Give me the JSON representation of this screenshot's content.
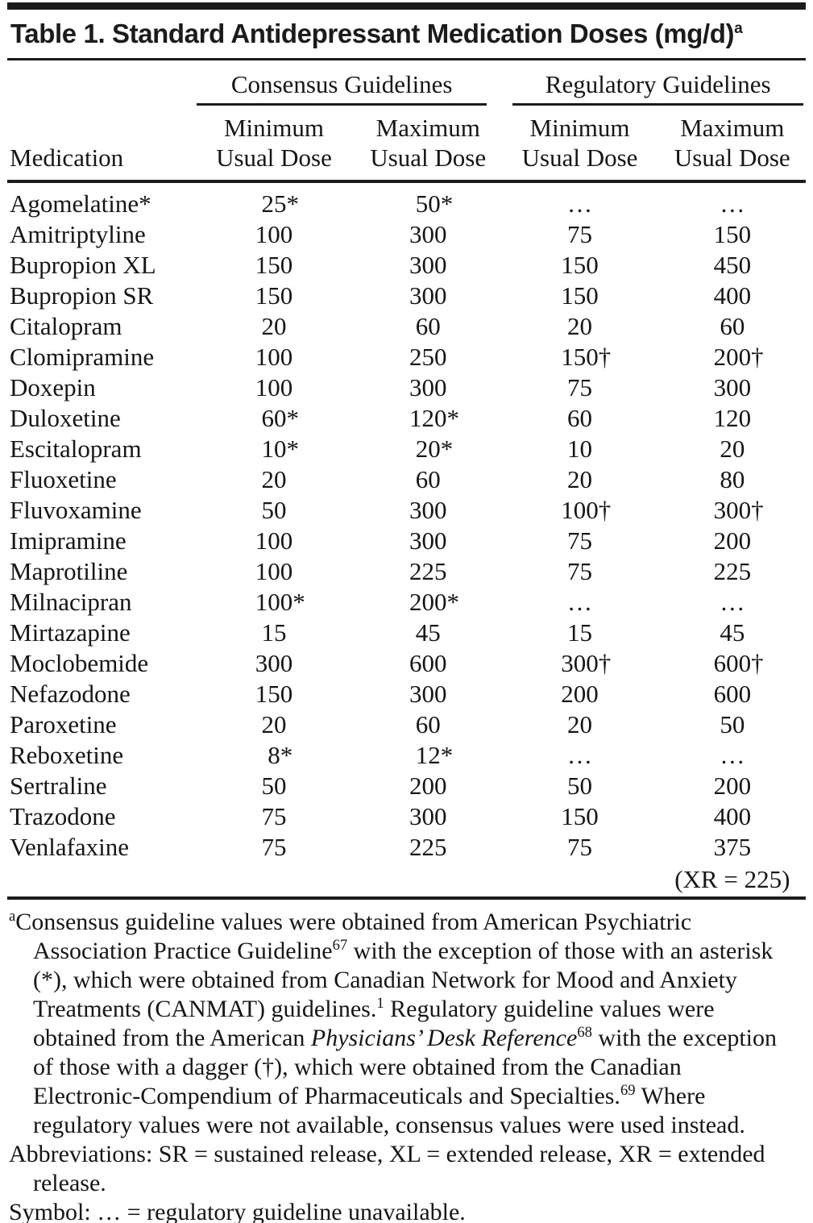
{
  "table": {
    "title": "Table 1. Standard Antidepressant Medication Doses (mg/d)",
    "title_sup": "a",
    "header": {
      "medication": "Medication",
      "consensus_group": "Consensus Guidelines",
      "regulatory_group": "Regulatory Guidelines",
      "subcolumns": [
        {
          "line1": "Minimum",
          "line2": "Usual Dose"
        },
        {
          "line1": "Maximum",
          "line2": "Usual Dose"
        },
        {
          "line1": "Minimum",
          "line2": "Usual Dose"
        },
        {
          "line1": "Maximum",
          "line2": "Usual Dose"
        }
      ]
    },
    "rows": [
      {
        "medication": "Agomelatine*",
        "values": [
          "25*",
          "50*",
          "…",
          "…"
        ]
      },
      {
        "medication": "Amitriptyline",
        "values": [
          "100",
          "300",
          "75",
          "150"
        ]
      },
      {
        "medication": "Bupropion XL",
        "values": [
          "150",
          "300",
          "150",
          "450"
        ]
      },
      {
        "medication": "Bupropion SR",
        "values": [
          "150",
          "300",
          "150",
          "400"
        ]
      },
      {
        "medication": "Citalopram",
        "values": [
          "20",
          "60",
          "20",
          "60"
        ]
      },
      {
        "medication": "Clomipramine",
        "values": [
          "100",
          "250",
          "150†",
          "200†"
        ]
      },
      {
        "medication": "Doxepin",
        "values": [
          "100",
          "300",
          "75",
          "300"
        ]
      },
      {
        "medication": "Duloxetine",
        "values": [
          "60*",
          "120*",
          "60",
          "120"
        ]
      },
      {
        "medication": "Escitalopram",
        "values": [
          "10*",
          "20*",
          "10",
          "20"
        ]
      },
      {
        "medication": "Fluoxetine",
        "values": [
          "20",
          "60",
          "20",
          "80"
        ]
      },
      {
        "medication": "Fluvoxamine",
        "values": [
          "50",
          "300",
          "100†",
          "300†"
        ]
      },
      {
        "medication": "Imipramine",
        "values": [
          "100",
          "300",
          "75",
          "200"
        ]
      },
      {
        "medication": "Maprotiline",
        "values": [
          "100",
          "225",
          "75",
          "225"
        ]
      },
      {
        "medication": "Milnacipran",
        "values": [
          "100*",
          "200*",
          "…",
          "…"
        ]
      },
      {
        "medication": "Mirtazapine",
        "values": [
          "15",
          "45",
          "15",
          "45"
        ]
      },
      {
        "medication": "Moclobemide",
        "values": [
          "300",
          "600",
          "300†",
          "600†"
        ]
      },
      {
        "medication": "Nefazodone",
        "values": [
          "150",
          "300",
          "200",
          "600"
        ]
      },
      {
        "medication": "Paroxetine",
        "values": [
          "20",
          "60",
          "20",
          "50"
        ]
      },
      {
        "medication": "Reboxetine",
        "values": [
          "8*",
          "12*",
          "…",
          "…"
        ]
      },
      {
        "medication": "Sertraline",
        "values": [
          "50",
          "200",
          "50",
          "200"
        ]
      },
      {
        "medication": "Trazodone",
        "values": [
          "75",
          "300",
          "150",
          "400"
        ]
      },
      {
        "medication": "Venlafaxine",
        "values": [
          "75",
          "225",
          "75",
          "375"
        ]
      }
    ],
    "xr_note": "(XR = 225)"
  },
  "footnotes": {
    "a": {
      "marker": "a",
      "segments": [
        {
          "t": "Consensus guideline values were obtained from American Psychiatric Association Practice Guideline"
        },
        {
          "t": "67",
          "sup": true
        },
        {
          "t": " with the exception of those with an asterisk (*), which were obtained from Canadian Network for Mood and Anxiety Treatments (CANMAT) guidelines."
        },
        {
          "t": "1",
          "sup": true
        },
        {
          "t": " Regulatory guideline values were obtained from the American "
        },
        {
          "t": "Physicians’ Desk Reference",
          "italic": true
        },
        {
          "t": "68",
          "sup": true
        },
        {
          "t": " with the exception of those with a dagger (†), which were obtained from the Canadian Electronic-Compendium of Pharmaceuticals and Specialties."
        },
        {
          "t": "69",
          "sup": true
        },
        {
          "t": " Where regulatory values were not available, consensus values were used instead."
        }
      ]
    },
    "abbreviations": {
      "segments": [
        {
          "t": "Abbreviations: SR = sustained release, XL = extended release, XR = extended release."
        }
      ]
    },
    "symbol": {
      "segments": [
        {
          "t": "Symbol: … = regulatory guideline unavailable."
        }
      ]
    }
  }
}
